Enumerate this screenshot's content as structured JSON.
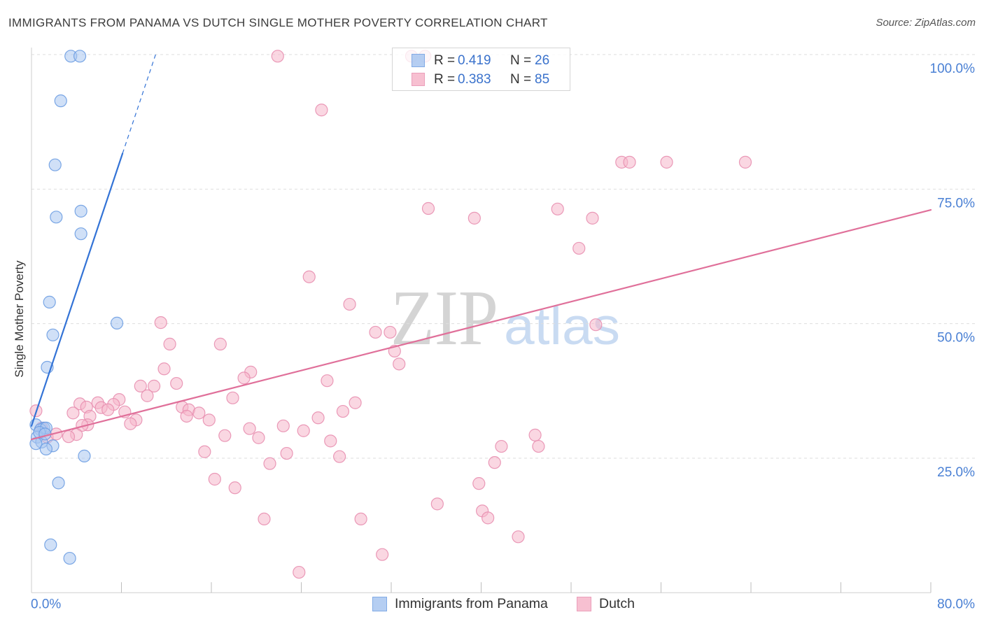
{
  "legend": {
    "r_label": "R =",
    "n_label": "N ="
  },
  "watermark": {
    "zip": "ZIP",
    "atlas": "atlas"
  },
  "colors": {
    "axis_label": "#4a80d4",
    "value_text": "#3a72cc",
    "grid": "#dedede"
  },
  "chart_data": {
    "type": "scatter",
    "title": "IMMIGRANTS FROM PANAMA VS DUTCH SINGLE MOTHER POVERTY CORRELATION CHART",
    "source": "Source: ZipAtlas.com",
    "xlabel": "",
    "ylabel": "Single Mother Poverty",
    "xlim": [
      0,
      80
    ],
    "ylim": [
      0,
      100
    ],
    "x_ticks": [
      0,
      8,
      16,
      24,
      32,
      40,
      48,
      56,
      64,
      72,
      80
    ],
    "x_tick_labels": [
      {
        "value": 0,
        "label": "0.0%"
      },
      {
        "value": 80,
        "label": "80.0%"
      }
    ],
    "y_ticks": [
      {
        "value": 100,
        "label": "100.0%"
      },
      {
        "value": 75,
        "label": "75.0%"
      },
      {
        "value": 50,
        "label": "50.0%"
      },
      {
        "value": 25,
        "label": "25.0%"
      }
    ],
    "grid": true,
    "legend_position": "top-center",
    "series": [
      {
        "name": "Immigrants from Panama",
        "r": "0.419",
        "n": "26",
        "fill": "#a9c6f0",
        "stroke": "#6d9de2",
        "line_color": "#3373d6",
        "trend": {
          "intercept": 31.0,
          "slope": 6.25,
          "x_start": 0,
          "x_solid_end": 8.1,
          "x_dashed_end": 11.04
        },
        "points": [
          [
            3.5,
            99.7
          ],
          [
            4.3,
            99.7
          ],
          [
            2.6,
            91.4
          ],
          [
            2.1,
            79.5
          ],
          [
            2.2,
            69.8
          ],
          [
            4.4,
            70.9
          ],
          [
            4.4,
            66.7
          ],
          [
            1.6,
            54.0
          ],
          [
            7.6,
            50.1
          ],
          [
            1.9,
            47.9
          ],
          [
            1.4,
            41.9
          ],
          [
            0.4,
            31.2
          ],
          [
            1.1,
            30.6
          ],
          [
            0.8,
            30.3
          ],
          [
            1.3,
            30.6
          ],
          [
            0.5,
            28.9
          ],
          [
            0.9,
            28.0
          ],
          [
            0.4,
            27.7
          ],
          [
            1.9,
            27.3
          ],
          [
            1.3,
            26.7
          ],
          [
            4.7,
            25.4
          ],
          [
            2.4,
            20.4
          ],
          [
            1.7,
            8.9
          ],
          [
            3.4,
            6.4
          ],
          [
            0.7,
            29.8
          ],
          [
            1.2,
            29.5
          ]
        ]
      },
      {
        "name": "Dutch",
        "r": "0.383",
        "n": "85",
        "fill": "#f6b6ca",
        "stroke": "#e88fb0",
        "line_color": "#e0709a",
        "trend": {
          "intercept": 28.5,
          "slope": 0.533,
          "x_start": 0,
          "x_solid_end": 80
        },
        "points": [
          [
            21.9,
            99.7
          ],
          [
            33.8,
            99.7
          ],
          [
            35.0,
            99.7
          ],
          [
            25.8,
            89.7
          ],
          [
            52.5,
            80.0
          ],
          [
            53.2,
            80.0
          ],
          [
            56.5,
            80.0
          ],
          [
            63.5,
            80.0
          ],
          [
            35.3,
            71.4
          ],
          [
            39.4,
            69.6
          ],
          [
            46.8,
            71.3
          ],
          [
            49.9,
            69.6
          ],
          [
            48.7,
            64.0
          ],
          [
            24.7,
            58.7
          ],
          [
            28.3,
            53.6
          ],
          [
            11.5,
            50.2
          ],
          [
            30.6,
            48.4
          ],
          [
            31.9,
            48.4
          ],
          [
            50.2,
            49.8
          ],
          [
            12.3,
            46.2
          ],
          [
            16.8,
            46.2
          ],
          [
            32.3,
            44.9
          ],
          [
            32.7,
            42.5
          ],
          [
            11.8,
            41.6
          ],
          [
            19.5,
            41.0
          ],
          [
            18.9,
            39.9
          ],
          [
            26.3,
            39.4
          ],
          [
            12.9,
            38.9
          ],
          [
            9.7,
            38.4
          ],
          [
            10.9,
            38.4
          ],
          [
            10.3,
            36.6
          ],
          [
            17.9,
            36.2
          ],
          [
            7.8,
            35.9
          ],
          [
            5.9,
            35.3
          ],
          [
            4.3,
            35.1
          ],
          [
            4.9,
            34.5
          ],
          [
            7.3,
            35.0
          ],
          [
            28.8,
            35.3
          ],
          [
            6.2,
            34.4
          ],
          [
            6.8,
            34.0
          ],
          [
            13.4,
            34.5
          ],
          [
            14.0,
            34.0
          ],
          [
            14.9,
            33.4
          ],
          [
            27.7,
            33.7
          ],
          [
            8.3,
            33.6
          ],
          [
            3.7,
            33.4
          ],
          [
            5.2,
            32.8
          ],
          [
            13.8,
            32.8
          ],
          [
            25.5,
            32.5
          ],
          [
            9.3,
            32.1
          ],
          [
            15.8,
            32.1
          ],
          [
            8.8,
            31.4
          ],
          [
            5.0,
            31.2
          ],
          [
            4.5,
            31.1
          ],
          [
            22.4,
            31.0
          ],
          [
            19.4,
            30.5
          ],
          [
            24.2,
            30.1
          ],
          [
            4.0,
            29.4
          ],
          [
            3.3,
            29.0
          ],
          [
            17.2,
            29.2
          ],
          [
            20.2,
            28.8
          ],
          [
            44.8,
            29.3
          ],
          [
            26.6,
            28.2
          ],
          [
            41.8,
            27.2
          ],
          [
            45.1,
            27.2
          ],
          [
            15.4,
            26.2
          ],
          [
            22.7,
            25.9
          ],
          [
            27.4,
            25.3
          ],
          [
            41.2,
            24.2
          ],
          [
            21.2,
            24.0
          ],
          [
            16.3,
            21.1
          ],
          [
            39.8,
            20.3
          ],
          [
            18.1,
            19.5
          ],
          [
            36.1,
            16.5
          ],
          [
            40.1,
            15.2
          ],
          [
            40.6,
            13.9
          ],
          [
            20.7,
            13.7
          ],
          [
            29.3,
            13.7
          ],
          [
            43.3,
            10.4
          ],
          [
            31.2,
            7.1
          ],
          [
            23.8,
            3.8
          ],
          [
            0.4,
            33.8
          ],
          [
            0.9,
            30.6
          ],
          [
            1.4,
            28.9
          ],
          [
            2.2,
            29.5
          ]
        ]
      }
    ]
  }
}
